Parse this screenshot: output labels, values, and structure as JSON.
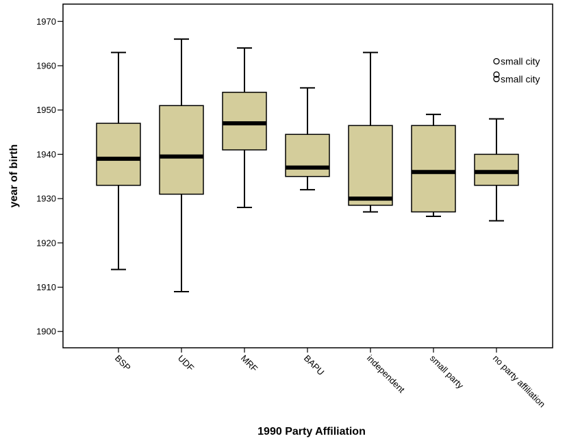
{
  "chart_data": {
    "type": "boxplot",
    "xlabel": "1990 Party Affiliation",
    "ylabel": "year of birth",
    "ylim": [
      1897,
      1975
    ],
    "yticks": [
      1900,
      1910,
      1920,
      1930,
      1940,
      1950,
      1960,
      1970
    ],
    "grid": false,
    "box_color": "#d4cd9b",
    "line_color": "#000000",
    "categories": [
      "BSP",
      "UDF",
      "MRF",
      "BAPU",
      "independent",
      "small party",
      "no party affiliation"
    ],
    "boxes": [
      {
        "category": "BSP",
        "min": 1914,
        "q1": 1933,
        "median": 1939,
        "q3": 1947,
        "max": 1963
      },
      {
        "category": "UDF",
        "min": 1909,
        "q1": 1931,
        "median": 1939.5,
        "q3": 1951,
        "max": 1966
      },
      {
        "category": "MRF",
        "min": 1928,
        "q1": 1941,
        "median": 1947,
        "q3": 1954,
        "max": 1964
      },
      {
        "category": "BAPU",
        "min": 1932,
        "q1": 1935,
        "median": 1937,
        "q3": 1944.5,
        "max": 1955
      },
      {
        "category": "independent",
        "min": 1927,
        "q1": 1928.5,
        "median": 1930,
        "q3": 1946.5,
        "max": 1963
      },
      {
        "category": "small party",
        "min": 1926,
        "q1": 1927,
        "median": 1936,
        "q3": 1946.5,
        "max": 1949
      },
      {
        "category": "no party affiliation",
        "min": 1925,
        "q1": 1933,
        "median": 1936,
        "q3": 1940,
        "max": 1948
      }
    ],
    "outliers": [
      {
        "category": "no party affiliation",
        "value": 1961,
        "label": "small city"
      },
      {
        "category": "no party affiliation",
        "value": 1958,
        "label": ""
      },
      {
        "category": "no party affiliation",
        "value": 1957,
        "label": "small city"
      }
    ]
  }
}
